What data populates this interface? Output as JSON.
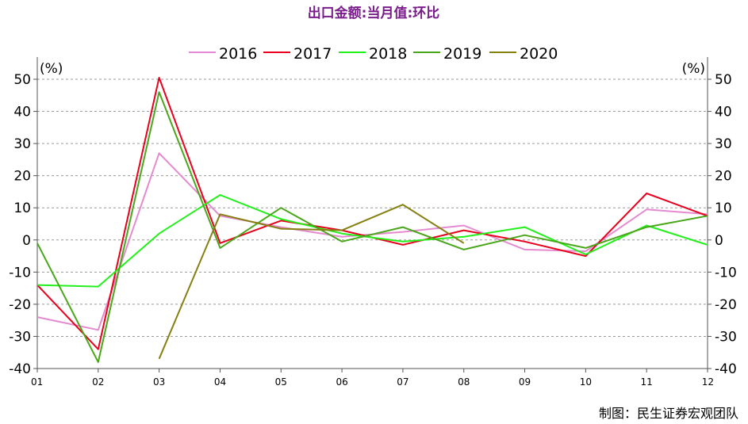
{
  "chart_data": {
    "type": "line",
    "title": "出口金额:当月值:环比",
    "y_unit_left": "(%)",
    "y_unit_right": "(%)",
    "credit": "制图：民生证券宏观团队",
    "categories": [
      "01",
      "02",
      "03",
      "04",
      "05",
      "06",
      "07",
      "08",
      "09",
      "10",
      "11",
      "12"
    ],
    "ylim": [
      -40,
      50
    ],
    "yticks": [
      50,
      40,
      30,
      20,
      10,
      0,
      -10,
      -20,
      -30,
      -40
    ],
    "grid": true,
    "legend_position": "top",
    "series": [
      {
        "name": "2016",
        "color": "#e58ad0",
        "values": [
          -24,
          -28,
          27,
          7.5,
          4,
          1,
          2.5,
          4.5,
          -3,
          -3.5,
          9.5,
          8
        ]
      },
      {
        "name": "2017",
        "color": "#e8001c",
        "values": [
          -14,
          -34,
          50.5,
          -1,
          6,
          3,
          -1.5,
          3,
          -0.5,
          -5,
          14.5,
          7.5
        ]
      },
      {
        "name": "2018",
        "color": "#22f01a",
        "values": [
          -14,
          -14.5,
          2,
          14,
          6.5,
          2,
          -0.5,
          1,
          4,
          -4.5,
          4.5,
          -1.5
        ]
      },
      {
        "name": "2019",
        "color": "#4aa61a",
        "values": [
          -1,
          -38,
          46,
          -2.5,
          10,
          -0.5,
          4,
          -3,
          1.5,
          -2.5,
          4,
          7.5
        ]
      },
      {
        "name": "2020",
        "color": "#868012",
        "values": [
          null,
          null,
          -37,
          8,
          3.5,
          3,
          11,
          -1,
          null,
          null,
          null,
          null
        ]
      }
    ]
  }
}
